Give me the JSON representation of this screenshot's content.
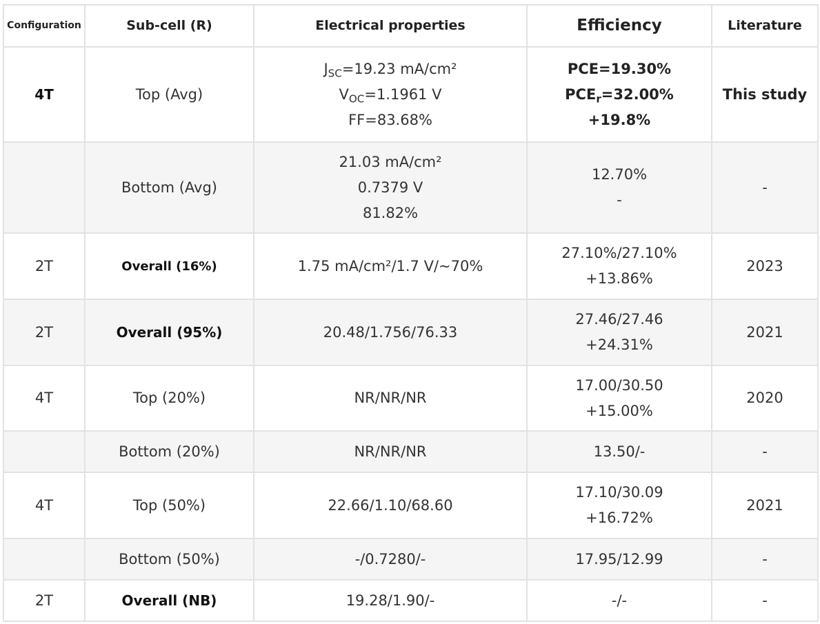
{
  "headers": {
    "configuration": "Configuration",
    "subcell": "Sub-cell (R)",
    "electrical": "Electrical properties",
    "efficiency": "Efficiency",
    "literature": "Literature"
  },
  "rows": [
    {
      "config": "4T",
      "subcell": "Top (Avg)",
      "elec": {
        "jsc_prefix": "J",
        "jsc_sub": "SC",
        "jsc_value": "=19.23 mA/cm²",
        "voc_prefix": "V",
        "voc_sub": "OC",
        "voc_value": "=1.1961 V",
        "ff": "FF=83.68%"
      },
      "eff": {
        "pce": "PCE=19.30%",
        "pcer_prefix": "PCE",
        "pcer_sub": "r",
        "pcer_value": "=32.00%",
        "gain": "+19.8%"
      },
      "lit": "This study"
    },
    {
      "config": "",
      "subcell": "Bottom (Avg)",
      "elec": [
        "21.03 mA/cm²",
        "0.7379 V",
        "81.82%"
      ],
      "eff": [
        "12.70%",
        "-"
      ],
      "lit": "-"
    },
    {
      "config": "2T",
      "subcell": "Overall (16%)",
      "elec": "1.75 mA/cm²/1.7 V/~70%",
      "eff": [
        "27.10%/27.10%",
        "+13.86%"
      ],
      "lit": "2023"
    },
    {
      "config": "2T",
      "subcell": "Overall (95%)",
      "elec": "20.48/1.756/76.33",
      "eff": [
        "27.46/27.46",
        "+24.31%"
      ],
      "lit": "2021"
    },
    {
      "config": "4T",
      "subcell": "Top (20%)",
      "elec": "NR/NR/NR",
      "eff": [
        "17.00/30.50",
        "+15.00%"
      ],
      "lit": "2020"
    },
    {
      "config": "",
      "subcell": "Bottom (20%)",
      "elec": "NR/NR/NR",
      "eff": [
        "13.50/-"
      ],
      "lit": "-"
    },
    {
      "config": "4T",
      "subcell": "Top (50%)",
      "elec": "22.66/1.10/68.60",
      "eff": [
        "17.10/30.09",
        "+16.72%"
      ],
      "lit": "2021"
    },
    {
      "config": "",
      "subcell": "Bottom (50%)",
      "elec": "-/0.7280/-",
      "eff": [
        "17.95/12.99"
      ],
      "lit": "-"
    },
    {
      "config": "2T",
      "subcell": "Overall (NB)",
      "elec": "19.28/1.90/-",
      "eff": [
        "-/-"
      ],
      "lit": "-"
    }
  ]
}
